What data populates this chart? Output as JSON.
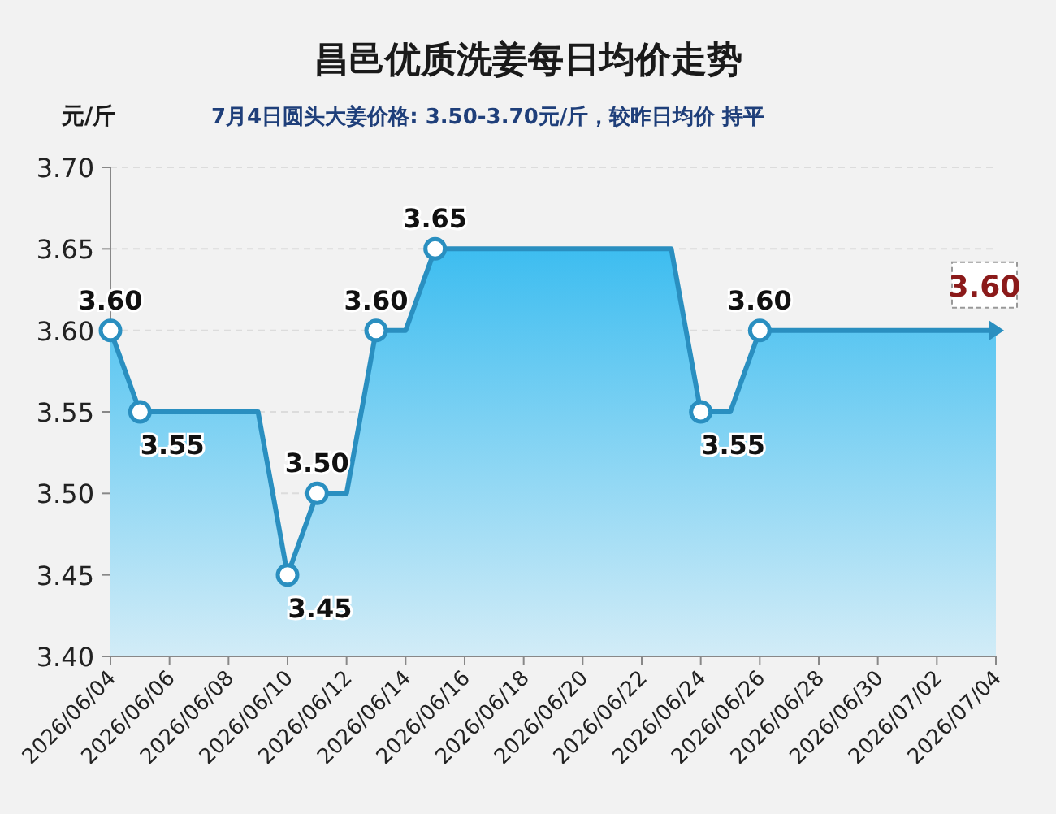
{
  "chart_data": {
    "type": "area",
    "title": "昌邑优质洗姜每日均价走势",
    "subtitle": "7月4日圆头大姜价格: 3.50-3.70元/斤，较昨日均价 持平",
    "ylabel": "元/斤",
    "x": [
      "2026-06-04",
      "2026-06-05",
      "2026-06-06",
      "2026-06-07",
      "2026-06-08",
      "2026-06-09",
      "2026-06-10",
      "2026-06-11",
      "2026-06-12",
      "2026-06-13",
      "2026-06-14",
      "2026-06-15",
      "2026-06-16",
      "2026-06-17",
      "2026-06-18",
      "2026-06-19",
      "2026-06-20",
      "2026-06-21",
      "2026-06-22",
      "2026-06-23",
      "2026-06-24",
      "2026-06-25",
      "2026-06-26",
      "2026-06-27",
      "2026-06-28",
      "2026-06-29",
      "2026-06-30",
      "2026-07-01",
      "2026-07-02",
      "2026-07-03",
      "2026-07-04"
    ],
    "values": [
      3.6,
      3.55,
      3.55,
      3.55,
      3.55,
      3.55,
      3.45,
      3.5,
      3.5,
      3.6,
      3.6,
      3.65,
      3.65,
      3.65,
      3.65,
      3.65,
      3.65,
      3.65,
      3.65,
      3.65,
      3.55,
      3.55,
      3.6,
      3.6,
      3.6,
      3.6,
      3.6,
      3.6,
      3.6,
      3.6,
      3.6
    ],
    "value_labels": [
      "3.60",
      "3.55",
      null,
      null,
      null,
      null,
      "3.45",
      "3.50",
      null,
      "3.60",
      null,
      "3.65",
      null,
      null,
      null,
      null,
      null,
      null,
      null,
      null,
      "3.55",
      null,
      "3.60",
      null,
      null,
      null,
      null,
      null,
      null,
      null,
      "3.60"
    ],
    "color": "#2a8fc0",
    "grid": "y",
    "xlim": [
      "2026-06-04",
      "2026-07-04"
    ],
    "ylim": [
      3.4,
      3.7
    ],
    "xticks": [
      {
        "value": "2026-06-04",
        "label": "2026/06/04"
      },
      {
        "value": "2026-06-06",
        "label": "2026/06/06"
      },
      {
        "value": "2026-06-08",
        "label": "2026/06/08"
      },
      {
        "value": "2026-06-10",
        "label": "2026/06/10"
      },
      {
        "value": "2026-06-12",
        "label": "2026/06/12"
      },
      {
        "value": "2026-06-14",
        "label": "2026/06/14"
      },
      {
        "value": "2026-06-16",
        "label": "2026/06/16"
      },
      {
        "value": "2026-06-18",
        "label": "2026/06/18"
      },
      {
        "value": "2026-06-20",
        "label": "2026/06/20"
      },
      {
        "value": "2026-06-22",
        "label": "2026/06/22"
      },
      {
        "value": "2026-06-24",
        "label": "2026/06/24"
      },
      {
        "value": "2026-06-26",
        "label": "2026/06/26"
      },
      {
        "value": "2026-06-28",
        "label": "2026/06/28"
      },
      {
        "value": "2026-06-30",
        "label": "2026/06/30"
      },
      {
        "value": "2026-07-02",
        "label": "2026/07/02"
      },
      {
        "value": "2026-07-04",
        "label": "2026/07/04"
      }
    ],
    "yticks": [
      {
        "value": 3.4,
        "label": "3.40"
      },
      {
        "value": 3.45,
        "label": "3.45"
      },
      {
        "value": 3.5,
        "label": "3.50"
      },
      {
        "value": 3.55,
        "label": "3.55"
      },
      {
        "value": 3.6,
        "label": "3.60"
      },
      {
        "value": 3.65,
        "label": "3.65"
      },
      {
        "value": 3.7,
        "label": "3.70"
      }
    ]
  }
}
